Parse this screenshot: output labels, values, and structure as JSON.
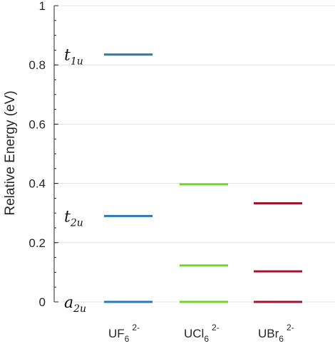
{
  "chart_data": {
    "type": "level-diagram",
    "ylabel": "Relative Energy (eV)",
    "ylim": [
      0,
      1
    ],
    "yticks": [
      "0",
      "0.2",
      "0.4",
      "0.6",
      "0.8",
      "1"
    ],
    "grid": true,
    "categories": [
      {
        "base": "UF",
        "sub": "6",
        "sup": "2-"
      },
      {
        "base": "UCl",
        "sub": "6",
        "sup": "2-"
      },
      {
        "base": "UBr",
        "sub": "6",
        "sup": "2-"
      }
    ],
    "series": [
      {
        "color": "#2a7ab9",
        "levels": [
          0,
          0.29,
          0.835
        ]
      },
      {
        "color": "#6fd624",
        "levels": [
          0,
          0.123,
          0.397
        ]
      },
      {
        "color": "#a2142f",
        "levels": [
          0,
          0.103,
          0.333
        ]
      }
    ],
    "annotations": [
      {
        "main": "t",
        "sub": "1u",
        "y": 0.835
      },
      {
        "main": "t",
        "sub": "2u",
        "y": 0.29
      },
      {
        "main": "a",
        "sub": "2u",
        "y": 0
      }
    ]
  }
}
